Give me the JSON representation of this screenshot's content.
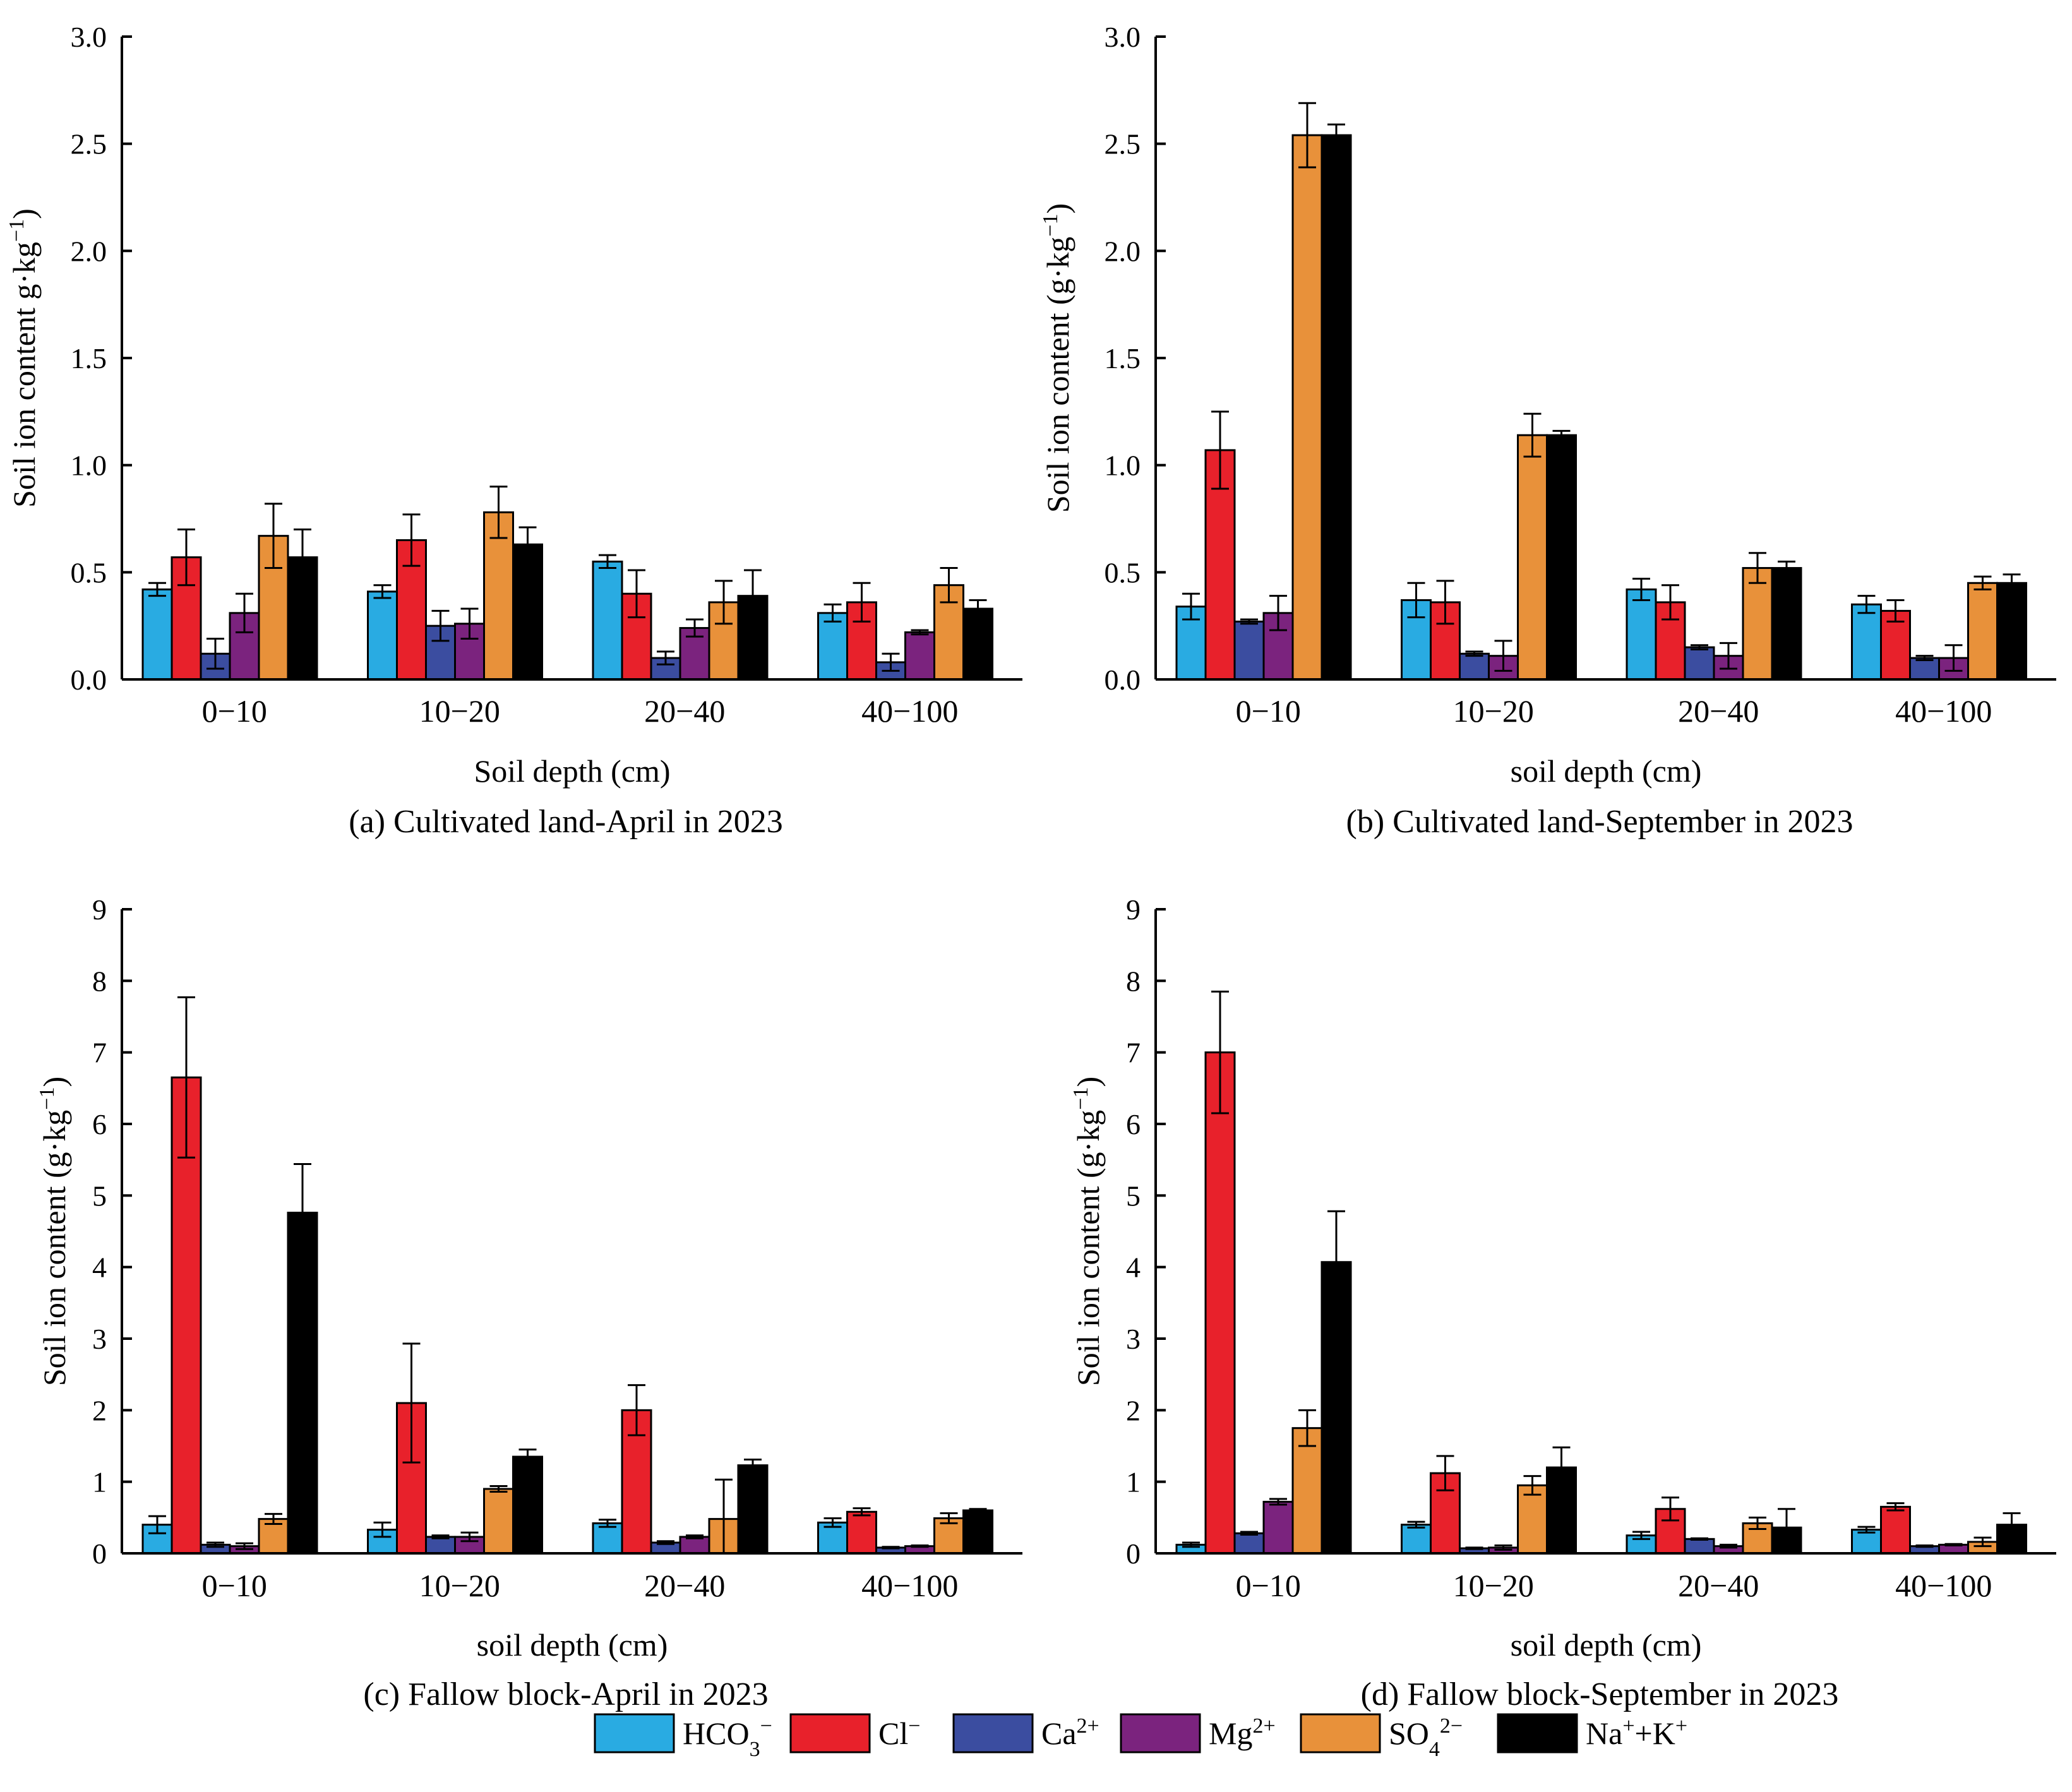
{
  "figure": {
    "series": [
      {
        "name": "HCO3-",
        "color": "#29ABE2"
      },
      {
        "name": "Cl-",
        "color": "#E8212B"
      },
      {
        "name": "Ca2+",
        "color": "#3B4DA0"
      },
      {
        "name": "Mg2+",
        "color": "#7B237E"
      },
      {
        "name": "SO42-",
        "color": "#E8913A"
      },
      {
        "name": "Na++K+",
        "color": "#000000"
      }
    ],
    "legend": {
      "items": [
        {
          "base": "HCO",
          "sub": "3",
          "sup": "−"
        },
        {
          "base": "Cl",
          "sub": "",
          "sup": "−"
        },
        {
          "base": "Ca",
          "sub": "",
          "sup": "2+"
        },
        {
          "base": "Mg",
          "sub": "",
          "sup": "2+"
        },
        {
          "base": "SO",
          "sub": "4",
          "sup": "2−"
        },
        {
          "base": "Na",
          "sub": "",
          "sup": "+",
          "base2": "+K",
          "sup2": "+"
        }
      ]
    }
  },
  "chart_data": [
    {
      "type": "bar",
      "caption": "(a) Cultivated land-April in 2023",
      "xlabel": "Soil depth (cm)",
      "ylabel": "Soil ion content g·kg",
      "ylabel_sup": "−1",
      "ylabel_close": ")",
      "ylim": [
        0,
        3.0
      ],
      "yticks": [
        "0.0",
        "0.5",
        "1.0",
        "1.5",
        "2.0",
        "2.5",
        "3.0"
      ],
      "categories": [
        "0−10",
        "10−20",
        "20−40",
        "40−100"
      ],
      "series": [
        {
          "name": "HCO3-",
          "values": [
            0.42,
            0.41,
            0.55,
            0.31
          ],
          "errors": [
            0.03,
            0.03,
            0.03,
            0.04
          ]
        },
        {
          "name": "Cl-",
          "values": [
            0.57,
            0.65,
            0.4,
            0.36
          ],
          "errors": [
            0.13,
            0.12,
            0.11,
            0.09
          ]
        },
        {
          "name": "Ca2+",
          "values": [
            0.12,
            0.25,
            0.1,
            0.08
          ],
          "errors": [
            0.07,
            0.07,
            0.03,
            0.04
          ]
        },
        {
          "name": "Mg2+",
          "values": [
            0.31,
            0.26,
            0.24,
            0.22
          ],
          "errors": [
            0.09,
            0.07,
            0.04,
            0.01
          ]
        },
        {
          "name": "SO42-",
          "values": [
            0.67,
            0.78,
            0.36,
            0.44
          ],
          "errors": [
            0.15,
            0.12,
            0.1,
            0.08
          ]
        },
        {
          "name": "Na++K+",
          "values": [
            0.57,
            0.63,
            0.39,
            0.33
          ],
          "errors": [
            0.13,
            0.08,
            0.12,
            0.04
          ]
        }
      ]
    },
    {
      "type": "bar",
      "caption": "(b) Cultivated land-September in 2023",
      "xlabel": "soil depth (cm)",
      "ylabel": "Soil ion content (g·kg",
      "ylabel_sup": "−1",
      "ylabel_close": ")",
      "ylim": [
        0,
        3.0
      ],
      "yticks": [
        "0.0",
        "0.5",
        "1.0",
        "1.5",
        "2.0",
        "2.5",
        "3.0"
      ],
      "categories": [
        "0−10",
        "10−20",
        "20−40",
        "40−100"
      ],
      "series": [
        {
          "name": "HCO3-",
          "values": [
            0.34,
            0.37,
            0.42,
            0.35
          ],
          "errors": [
            0.06,
            0.08,
            0.05,
            0.04
          ]
        },
        {
          "name": "Cl-",
          "values": [
            1.07,
            0.36,
            0.36,
            0.32
          ],
          "errors": [
            0.18,
            0.1,
            0.08,
            0.05
          ]
        },
        {
          "name": "Ca2+",
          "values": [
            0.27,
            0.12,
            0.15,
            0.1
          ],
          "errors": [
            0.01,
            0.01,
            0.01,
            0.01
          ]
        },
        {
          "name": "Mg2+",
          "values": [
            0.31,
            0.11,
            0.11,
            0.1
          ],
          "errors": [
            0.08,
            0.07,
            0.06,
            0.06
          ]
        },
        {
          "name": "SO42-",
          "values": [
            2.54,
            1.14,
            0.52,
            0.45
          ],
          "errors": [
            0.15,
            0.1,
            0.07,
            0.03
          ]
        },
        {
          "name": "Na++K+",
          "values": [
            2.54,
            1.14,
            0.52,
            0.45
          ],
          "errors": [
            0.05,
            0.02,
            0.03,
            0.04
          ]
        }
      ]
    },
    {
      "type": "bar",
      "caption": "(c) Fallow block-April in 2023",
      "xlabel": "soil depth (cm)",
      "ylabel": "Soil ion content (g·kg",
      "ylabel_sup": "−1",
      "ylabel_close": ")",
      "ylim": [
        0,
        9
      ],
      "yticks": [
        "0",
        "1",
        "2",
        "3",
        "4",
        "5",
        "6",
        "7",
        "8",
        "9"
      ],
      "categories": [
        "0−10",
        "10−20",
        "20−40",
        "40−100"
      ],
      "series": [
        {
          "name": "HCO3-",
          "values": [
            0.4,
            0.33,
            0.42,
            0.43
          ],
          "errors": [
            0.12,
            0.1,
            0.05,
            0.06
          ]
        },
        {
          "name": "Cl-",
          "values": [
            6.65,
            2.1,
            2.0,
            0.58
          ],
          "errors": [
            1.12,
            0.83,
            0.35,
            0.05
          ]
        },
        {
          "name": "Ca2+",
          "values": [
            0.12,
            0.23,
            0.15,
            0.08
          ],
          "errors": [
            0.03,
            0.02,
            0.02,
            0.01
          ]
        },
        {
          "name": "Mg2+",
          "values": [
            0.1,
            0.23,
            0.23,
            0.1
          ],
          "errors": [
            0.04,
            0.06,
            0.02,
            0.01
          ]
        },
        {
          "name": "SO42-",
          "values": [
            0.48,
            0.9,
            0.48,
            0.49
          ],
          "errors": [
            0.07,
            0.04,
            0.55,
            0.07
          ]
        },
        {
          "name": "Na++K+",
          "values": [
            4.76,
            1.35,
            1.23,
            0.6
          ],
          "errors": [
            0.68,
            0.1,
            0.08,
            0.02
          ]
        }
      ]
    },
    {
      "type": "bar",
      "caption": "(d) Fallow block-September in 2023",
      "xlabel": "soil depth (cm)",
      "ylabel": "Soil ion content (g·kg",
      "ylabel_sup": "−1",
      "ylabel_close": ")",
      "ylim": [
        0,
        9
      ],
      "yticks": [
        "0",
        "1",
        "2",
        "3",
        "4",
        "5",
        "6",
        "7",
        "8",
        "9"
      ],
      "categories": [
        "0−10",
        "10−20",
        "20−40",
        "40−100"
      ],
      "series": [
        {
          "name": "HCO3-",
          "values": [
            0.12,
            0.4,
            0.25,
            0.33
          ],
          "errors": [
            0.03,
            0.04,
            0.05,
            0.04
          ]
        },
        {
          "name": "Cl-",
          "values": [
            7.0,
            1.12,
            0.62,
            0.65
          ],
          "errors": [
            0.85,
            0.24,
            0.16,
            0.05
          ]
        },
        {
          "name": "Ca2+",
          "values": [
            0.28,
            0.07,
            0.2,
            0.1
          ],
          "errors": [
            0.02,
            0.01,
            0.01,
            0.01
          ]
        },
        {
          "name": "Mg2+",
          "values": [
            0.72,
            0.08,
            0.1,
            0.12
          ],
          "errors": [
            0.04,
            0.03,
            0.02,
            0.01
          ]
        },
        {
          "name": "SO42-",
          "values": [
            1.75,
            0.95,
            0.42,
            0.16
          ],
          "errors": [
            0.25,
            0.13,
            0.08,
            0.06
          ]
        },
        {
          "name": "Na++K+",
          "values": [
            4.07,
            1.2,
            0.36,
            0.4
          ],
          "errors": [
            0.71,
            0.28,
            0.26,
            0.16
          ]
        }
      ]
    }
  ]
}
